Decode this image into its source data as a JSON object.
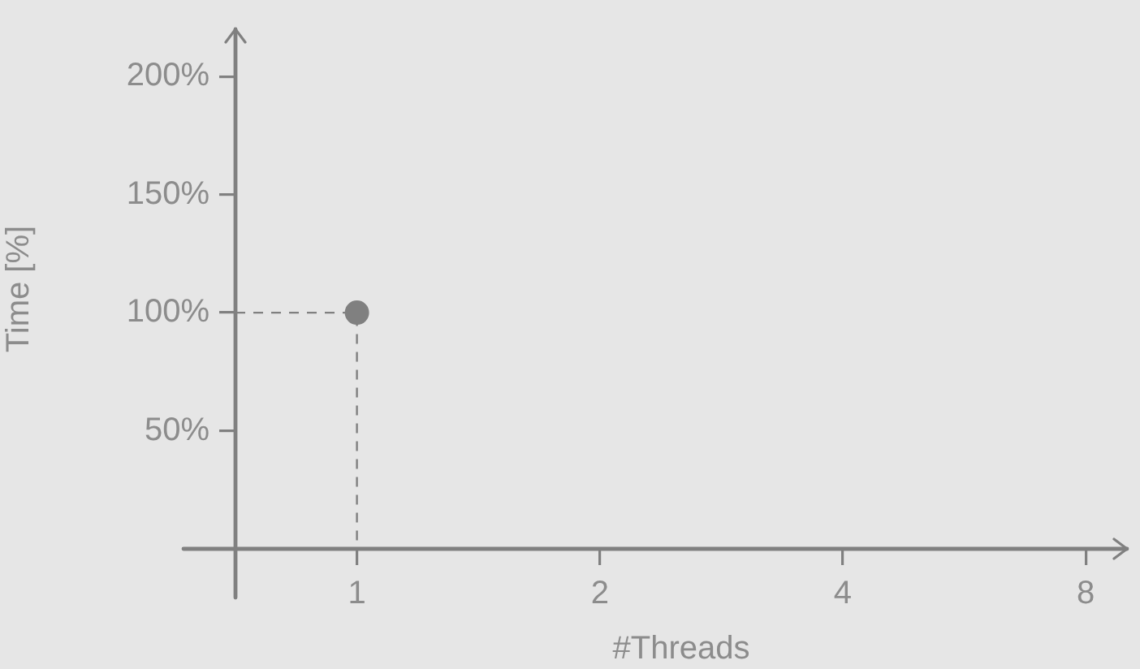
{
  "chart_data": {
    "type": "scatter",
    "xlabel": "#Threads",
    "ylabel": "Time [%]",
    "categories": [
      "1",
      "2",
      "4",
      "8"
    ],
    "series": [
      {
        "color": "#808080",
        "values": [
          100,
          null,
          null,
          null
        ]
      }
    ],
    "ylim": [
      0,
      220
    ],
    "yticks": [
      {
        "value": 50,
        "label": "50%"
      },
      {
        "value": 100,
        "label": "100%"
      },
      {
        "value": 150,
        "label": "150%"
      },
      {
        "value": 200,
        "label": "200%"
      }
    ],
    "marker": "circle",
    "grid": false,
    "legend": false
  }
}
